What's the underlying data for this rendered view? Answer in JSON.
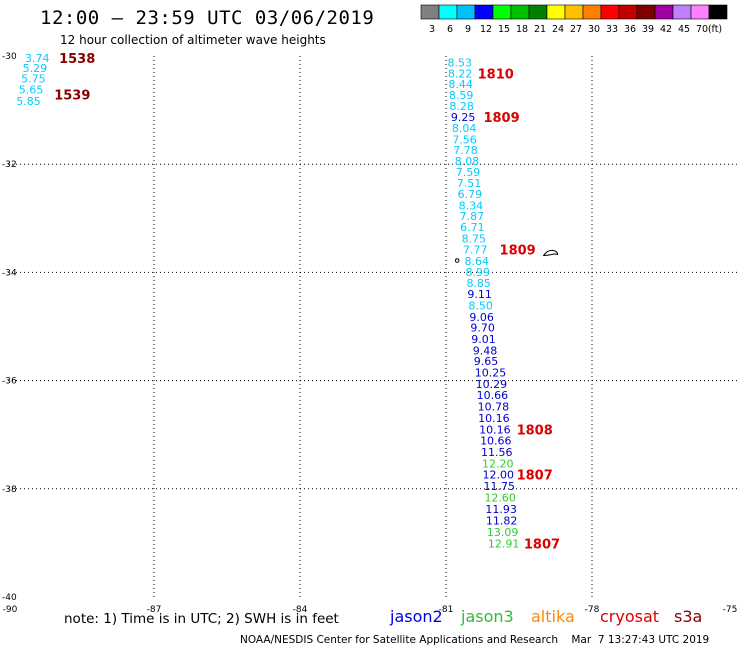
{
  "header": {
    "title": "12:00 – 23:59 UTC 03/06/2019",
    "subtitle": "12 hour collection of altimeter wave heights"
  },
  "colorbar": {
    "unit": "(ft)",
    "segments": [
      {
        "label": "3",
        "color": "#808080"
      },
      {
        "label": "6",
        "color": "#00ffff"
      },
      {
        "label": "9",
        "color": "#00c0ff"
      },
      {
        "label": "12",
        "color": "#0000ff"
      },
      {
        "label": "15",
        "color": "#00ff00"
      },
      {
        "label": "18",
        "color": "#00c000"
      },
      {
        "label": "21",
        "color": "#008000"
      },
      {
        "label": "24",
        "color": "#ffff00"
      },
      {
        "label": "27",
        "color": "#ffc000"
      },
      {
        "label": "30",
        "color": "#ff8000"
      },
      {
        "label": "33",
        "color": "#ff0000"
      },
      {
        "label": "36",
        "color": "#c00000"
      },
      {
        "label": "39",
        "color": "#800000"
      },
      {
        "label": "42",
        "color": "#a000a0"
      },
      {
        "label": "45",
        "color": "#c080ff"
      },
      {
        "label": "70",
        "color": "#ff80ff"
      },
      {
        "label": "",
        "color": "#000000"
      }
    ]
  },
  "map": {
    "lon_min": -90,
    "lon_max": -75,
    "lat_min": -40,
    "lat_max": -30,
    "lon_ticks": [
      {
        "value": -90,
        "label": "-90"
      },
      {
        "value": -87,
        "label": "-87"
      },
      {
        "value": -84,
        "label": "-84"
      },
      {
        "value": -81,
        "label": "-81"
      },
      {
        "value": -78,
        "label": "-78"
      },
      {
        "value": -75,
        "label": "-75"
      }
    ],
    "lat_ticks": [
      {
        "value": -30,
        "label": "-30"
      },
      {
        "value": -32,
        "label": "-32"
      },
      {
        "value": -34,
        "label": "-34"
      },
      {
        "value": -36,
        "label": "-36"
      },
      {
        "value": -38,
        "label": "-38"
      },
      {
        "value": -40,
        "label": "-40"
      }
    ],
    "grid": true
  },
  "observations": [
    {
      "lon": -89.65,
      "lat": -30.04,
      "text": "3.74",
      "color": "#00ccff"
    },
    {
      "lon": -89.7,
      "lat": -30.22,
      "text": "5.29",
      "color": "#00ccff"
    },
    {
      "lon": -89.73,
      "lat": -30.42,
      "text": "5.75",
      "color": "#00ccff"
    },
    {
      "lon": -89.78,
      "lat": -30.62,
      "text": "5.65",
      "color": "#00ccff"
    },
    {
      "lon": -89.83,
      "lat": -30.83,
      "text": "5.85",
      "color": "#00ccff"
    },
    {
      "lon": -80.97,
      "lat": -30.12,
      "text": "8.53",
      "color": "#00ccff"
    },
    {
      "lon": -80.96,
      "lat": -30.32,
      "text": "8.22",
      "color": "#00ccff"
    },
    {
      "lon": -80.95,
      "lat": -30.52,
      "text": "8.44",
      "color": "#00ccff"
    },
    {
      "lon": -80.94,
      "lat": -30.72,
      "text": "8.59",
      "color": "#00ccff"
    },
    {
      "lon": -80.93,
      "lat": -30.92,
      "text": "8.28",
      "color": "#00ccff"
    },
    {
      "lon": -80.9,
      "lat": -31.13,
      "text": "9.25",
      "color": "#0000cc"
    },
    {
      "lon": -80.88,
      "lat": -31.33,
      "text": "8.04",
      "color": "#00ccff"
    },
    {
      "lon": -80.87,
      "lat": -31.54,
      "text": "7.56",
      "color": "#00ccff"
    },
    {
      "lon": -80.85,
      "lat": -31.74,
      "text": "7.78",
      "color": "#00ccff"
    },
    {
      "lon": -80.82,
      "lat": -31.94,
      "text": "8.08",
      "color": "#00ccff"
    },
    {
      "lon": -80.8,
      "lat": -32.14,
      "text": "7.59",
      "color": "#00ccff"
    },
    {
      "lon": -80.78,
      "lat": -32.35,
      "text": "7.51",
      "color": "#00ccff"
    },
    {
      "lon": -80.76,
      "lat": -32.55,
      "text": "6.79",
      "color": "#00ccff"
    },
    {
      "lon": -80.74,
      "lat": -32.76,
      "text": "8.34",
      "color": "#00ccff"
    },
    {
      "lon": -80.72,
      "lat": -32.96,
      "text": "7.87",
      "color": "#00ccff"
    },
    {
      "lon": -80.71,
      "lat": -33.16,
      "text": "6.71",
      "color": "#00ccff"
    },
    {
      "lon": -80.68,
      "lat": -33.37,
      "text": "8.75",
      "color": "#00ccff"
    },
    {
      "lon": -80.65,
      "lat": -33.58,
      "text": "7.77",
      "color": "#00ccff"
    },
    {
      "lon": -80.62,
      "lat": -33.79,
      "text": "8.64",
      "color": "#00ccff"
    },
    {
      "lon": -80.6,
      "lat": -33.99,
      "text": "8.99",
      "color": "#00ccff"
    },
    {
      "lon": -80.58,
      "lat": -34.2,
      "text": "8.85",
      "color": "#00ccff"
    },
    {
      "lon": -80.56,
      "lat": -34.4,
      "text": "9.11",
      "color": "#0000cc"
    },
    {
      "lon": -80.54,
      "lat": -34.61,
      "text": "8.50",
      "color": "#00ccff"
    },
    {
      "lon": -80.52,
      "lat": -34.82,
      "text": "9.06",
      "color": "#0000cc"
    },
    {
      "lon": -80.5,
      "lat": -35.02,
      "text": "9.70",
      "color": "#0000cc"
    },
    {
      "lon": -80.48,
      "lat": -35.23,
      "text": "9.01",
      "color": "#0000cc"
    },
    {
      "lon": -80.45,
      "lat": -35.44,
      "text": "9.48",
      "color": "#0000cc"
    },
    {
      "lon": -80.43,
      "lat": -35.64,
      "text": "9.65",
      "color": "#0000cc"
    },
    {
      "lon": -80.41,
      "lat": -35.85,
      "text": "10.25",
      "color": "#0000cc"
    },
    {
      "lon": -80.39,
      "lat": -36.06,
      "text": "10.29",
      "color": "#0000cc"
    },
    {
      "lon": -80.37,
      "lat": -36.27,
      "text": "10.66",
      "color": "#0000cc"
    },
    {
      "lon": -80.35,
      "lat": -36.48,
      "text": "10.78",
      "color": "#0000cc"
    },
    {
      "lon": -80.34,
      "lat": -36.69,
      "text": "10.16",
      "color": "#0000cc"
    },
    {
      "lon": -80.32,
      "lat": -36.9,
      "text": "10.16",
      "color": "#0000cc"
    },
    {
      "lon": -80.3,
      "lat": -37.11,
      "text": "10.66",
      "color": "#0000cc"
    },
    {
      "lon": -80.28,
      "lat": -37.32,
      "text": "11.56",
      "color": "#0000cc"
    },
    {
      "lon": -80.26,
      "lat": -37.53,
      "text": "12.20",
      "color": "#33cc33"
    },
    {
      "lon": -80.25,
      "lat": -37.74,
      "text": "12.00",
      "color": "#0000cc"
    },
    {
      "lon": -80.23,
      "lat": -37.95,
      "text": "11.75",
      "color": "#0000cc"
    },
    {
      "lon": -80.21,
      "lat": -38.16,
      "text": "12.60",
      "color": "#33cc33"
    },
    {
      "lon": -80.19,
      "lat": -38.37,
      "text": "11.93",
      "color": "#0000cc"
    },
    {
      "lon": -80.18,
      "lat": -38.59,
      "text": "11.82",
      "color": "#0000cc"
    },
    {
      "lon": -80.16,
      "lat": -38.8,
      "text": "13.09",
      "color": "#33cc33"
    },
    {
      "lon": -80.14,
      "lat": -39.01,
      "text": "12.91",
      "color": "#33cc33"
    }
  ],
  "pass_times": [
    {
      "lon": -88.95,
      "lat": -30.04,
      "text": "1538",
      "color": "#880000"
    },
    {
      "lon": -89.05,
      "lat": -30.71,
      "text": "1539",
      "color": "#880000"
    },
    {
      "lon": -80.35,
      "lat": -30.32,
      "text": "1810",
      "color": "#dd0000"
    },
    {
      "lon": -80.23,
      "lat": -31.13,
      "text": "1809",
      "color": "#dd0000"
    },
    {
      "lon": -79.9,
      "lat": -33.58,
      "text": "1809",
      "color": "#dd0000"
    },
    {
      "lon": -79.55,
      "lat": -36.9,
      "text": "1808",
      "color": "#dd0000"
    },
    {
      "lon": -79.55,
      "lat": -37.74,
      "text": "1807",
      "color": "#dd0000"
    },
    {
      "lon": -79.4,
      "lat": -39.01,
      "text": "1807",
      "color": "#dd0000"
    }
  ],
  "islands": [
    {
      "lon": -78.85,
      "lat": -33.65,
      "name": "robinson-crusoe-island"
    },
    {
      "lon": -80.77,
      "lat": -33.78,
      "name": "alejandro-selkirk-island"
    }
  ],
  "legend": {
    "note": "note:  1) Time is in UTC;  2) SWH is in feet",
    "satellites": [
      {
        "name": "jason2",
        "color": "#0000dd"
      },
      {
        "name": "jason3",
        "color": "#33bb33"
      },
      {
        "name": "altika",
        "color": "#ff8800"
      },
      {
        "name": "cryosat",
        "color": "#dd0000"
      },
      {
        "name": "s3a",
        "color": "#880000"
      }
    ]
  },
  "footer": {
    "credit": "NOAA/NESDIS Center for Satellite Applications and Research",
    "timestamp": "Mar  7 13:27:43 UTC 2019"
  }
}
